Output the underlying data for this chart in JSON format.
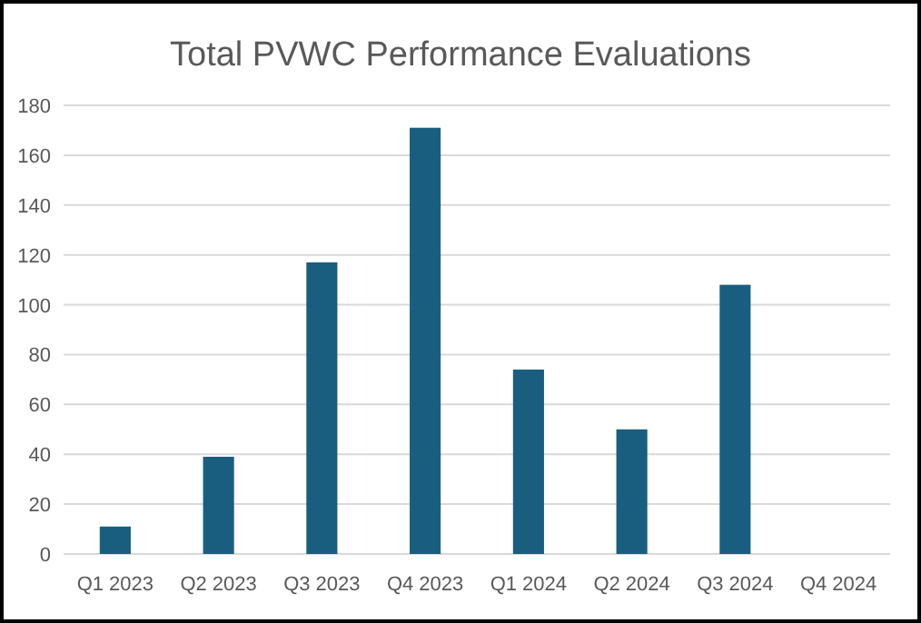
{
  "chart_data": {
    "type": "bar",
    "title": "Total PVWC Performance Evaluations",
    "categories": [
      "Q1 2023",
      "Q2 2023",
      "Q3 2023",
      "Q4 2023",
      "Q1 2024",
      "Q2 2024",
      "Q3 2024",
      "Q4 2024"
    ],
    "values": [
      11,
      39,
      117,
      171,
      74,
      50,
      108,
      null
    ],
    "color": "#195e7e",
    "ylim": [
      0,
      180
    ],
    "yticks": [
      0,
      20,
      40,
      60,
      80,
      100,
      120,
      140,
      160,
      180
    ],
    "grid": "y"
  }
}
